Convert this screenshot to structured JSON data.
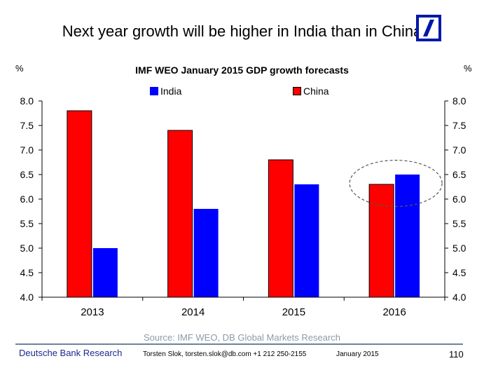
{
  "slide": {
    "title": "Next year growth will be higher in India than in China",
    "logo": "deutsche-bank-logo"
  },
  "chart_data": {
    "type": "bar",
    "title": "IMF WEO January 2015 GDP growth forecasts",
    "ylabel_left": "%",
    "ylabel_right": "%",
    "xlabel": "",
    "categories": [
      "2013",
      "2014",
      "2015",
      "2016"
    ],
    "series": [
      {
        "name": "China",
        "color": "#ff0000",
        "values": [
          7.8,
          7.4,
          6.8,
          6.3
        ]
      },
      {
        "name": "India",
        "color": "#0000ff",
        "values": [
          5.0,
          5.8,
          6.3,
          6.5
        ]
      }
    ],
    "legend_order": [
      "India",
      "China"
    ],
    "legend_position": "top",
    "ylim": [
      4.0,
      8.0
    ],
    "yticks": [
      "4.0",
      "4.5",
      "5.0",
      "5.5",
      "6.0",
      "6.5",
      "7.0",
      "7.5",
      "8.0"
    ],
    "grid": false,
    "annotations": [
      {
        "type": "dashed-ellipse",
        "category": "2016",
        "note": "highlights India overtaking China in 2016"
      }
    ],
    "source": "Source: IMF WEO, DB Global Markets Research"
  },
  "footer": {
    "brand": "Deutsche Bank Research",
    "contact": "Torsten Slok, torsten.slok@db.com  +1 212 250-2155",
    "date": "January 2015",
    "page": "110"
  },
  "colors": {
    "brand_blue": "#0018a8",
    "footer_brand": "#1a2a8c",
    "source_gray": "#8c9aa8",
    "rule": "#6e8499"
  }
}
